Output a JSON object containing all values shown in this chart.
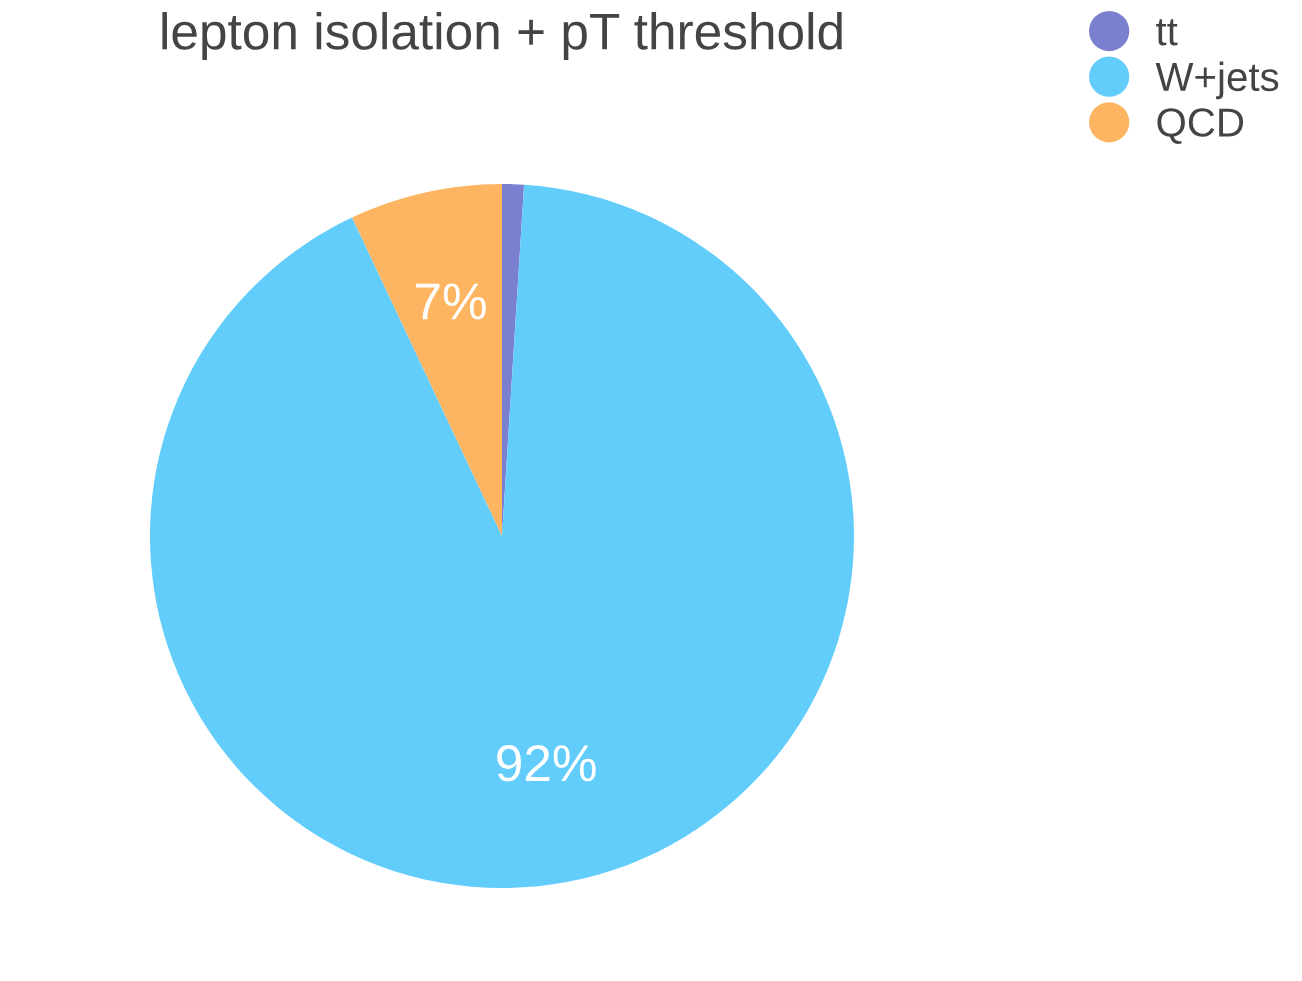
{
  "chart_data": {
    "type": "pie",
    "title": "lepton isolation + pT threshold",
    "categories": [
      "tt",
      "W+jets",
      "QCD"
    ],
    "values": [
      1,
      92,
      7
    ],
    "colors": [
      "#7a7fcf",
      "#62cdfb",
      "#feb562"
    ],
    "value_labels": [
      null,
      "92%",
      "7%"
    ],
    "legend": "top right"
  }
}
